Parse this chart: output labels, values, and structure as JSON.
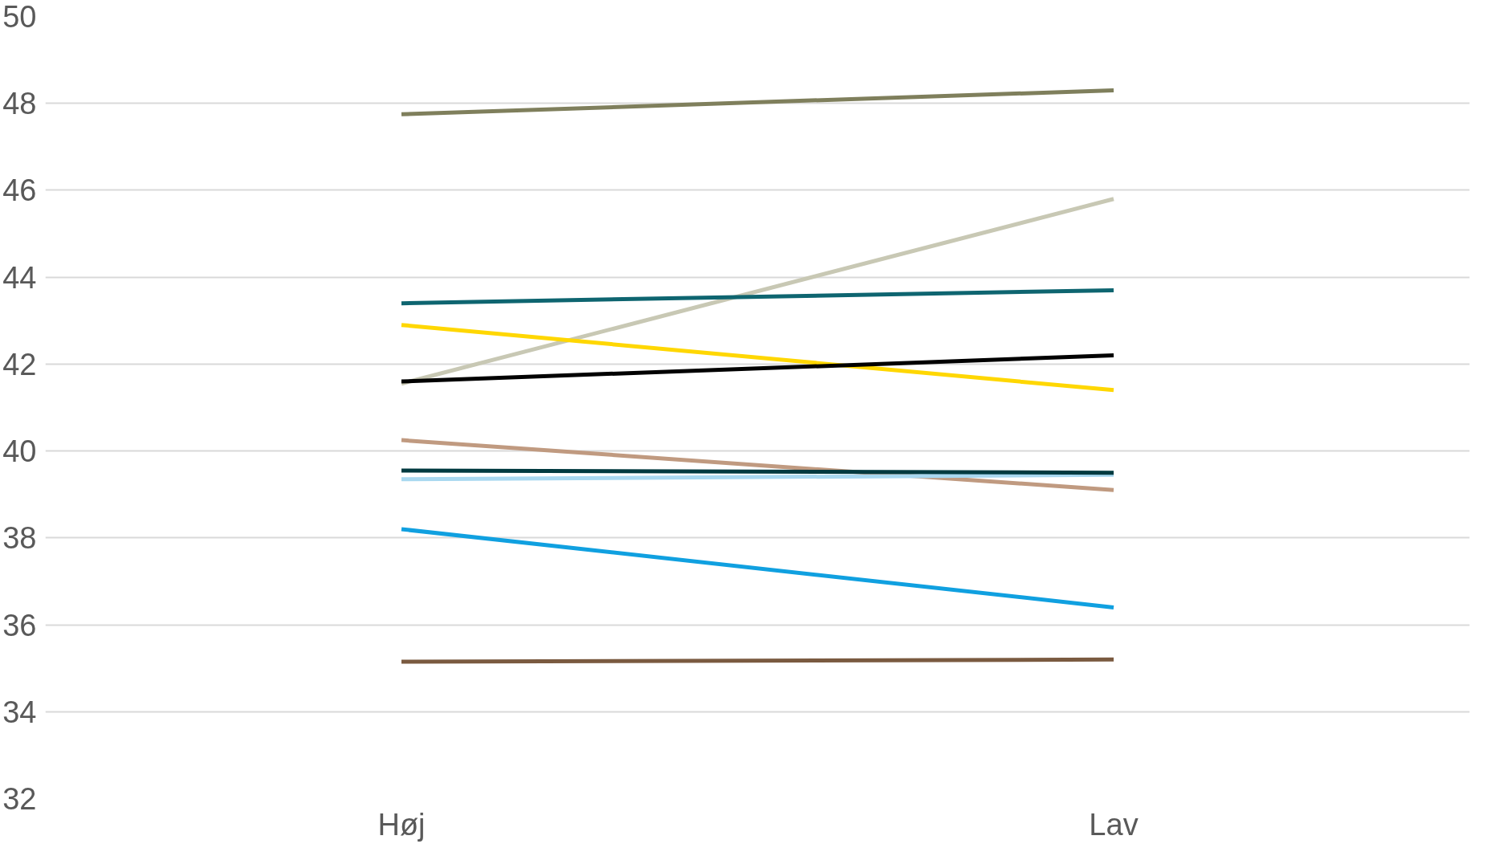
{
  "chart_data": {
    "type": "line",
    "categories": [
      "Høj",
      "Lav"
    ],
    "series": [
      {
        "color": "#7f7f5c",
        "values": [
          47.75,
          48.3
        ]
      },
      {
        "color": "#c8c8b4",
        "values": [
          41.55,
          45.8
        ]
      },
      {
        "color": "#0e6570",
        "values": [
          43.4,
          43.7
        ]
      },
      {
        "color": "#ffd700",
        "values": [
          42.9,
          41.4
        ]
      },
      {
        "color": "#000000",
        "values": [
          41.6,
          42.2
        ]
      },
      {
        "color": "#c09a80",
        "values": [
          40.25,
          39.1
        ]
      },
      {
        "color": "#a8d8f0",
        "values": [
          39.35,
          39.45
        ]
      },
      {
        "color": "#003a40",
        "values": [
          39.55,
          39.5
        ]
      },
      {
        "color": "#10a0e0",
        "values": [
          38.2,
          36.4
        ]
      },
      {
        "color": "#7a5a40",
        "values": [
          35.15,
          35.2
        ]
      }
    ],
    "ylim": [
      32,
      50
    ],
    "yticks": [
      32,
      34,
      36,
      38,
      40,
      42,
      44,
      46,
      48,
      50
    ],
    "grid": "y",
    "marker": "none",
    "line_style": "solid"
  }
}
